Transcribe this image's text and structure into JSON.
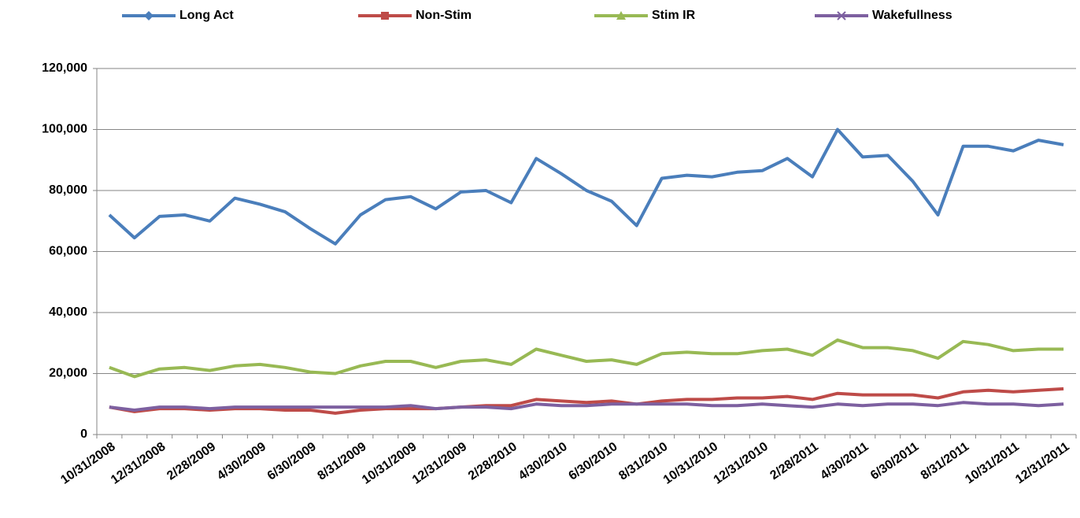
{
  "chart_data": {
    "type": "line",
    "categories": [
      "10/31/2008",
      null,
      "12/31/2008",
      null,
      "2/28/2009",
      null,
      "4/30/2009",
      null,
      "6/30/2009",
      null,
      "8/31/2009",
      null,
      "10/31/2009",
      null,
      "12/31/2009",
      null,
      "2/28/2010",
      null,
      "4/30/2010",
      null,
      "6/30/2010",
      null,
      "8/31/2010",
      null,
      "10/31/2010",
      null,
      "12/31/2010",
      null,
      "2/28/2011",
      null,
      "4/30/2011",
      null,
      "6/30/2011",
      null,
      "8/31/2011",
      null,
      "10/31/2011",
      null,
      "12/31/2011"
    ],
    "series": [
      {
        "name": "Long Act",
        "color": "#4a7ebb",
        "marker": "diamond",
        "values": [
          72000,
          64500,
          71500,
          72000,
          70000,
          77500,
          75500,
          73000,
          67500,
          62500,
          72000,
          77000,
          78000,
          74000,
          79500,
          80000,
          76000,
          90500,
          85500,
          80000,
          76500,
          68500,
          84000,
          85000,
          84500,
          86000,
          86500,
          90500,
          84500,
          100000,
          91000,
          91500,
          83000,
          72000,
          94500,
          94500,
          93000,
          96500,
          95000
        ]
      },
      {
        "name": "Non-Stim",
        "color": "#be4b48",
        "marker": "square",
        "values": [
          9000,
          7500,
          8500,
          8500,
          8000,
          8500,
          8500,
          8000,
          8000,
          7000,
          8000,
          8500,
          8500,
          8500,
          9000,
          9500,
          9500,
          11500,
          11000,
          10500,
          11000,
          10000,
          11000,
          11500,
          11500,
          12000,
          12000,
          12500,
          11500,
          13500,
          13000,
          13000,
          13000,
          12000,
          14000,
          14500,
          14000,
          14500,
          15000
        ]
      },
      {
        "name": "Stim IR",
        "color": "#98b954",
        "marker": "triangle",
        "values": [
          22000,
          19000,
          21500,
          22000,
          21000,
          22500,
          23000,
          22000,
          20500,
          20000,
          22500,
          24000,
          24000,
          22000,
          24000,
          24500,
          23000,
          28000,
          26000,
          24000,
          24500,
          23000,
          26500,
          27000,
          26500,
          26500,
          27500,
          28000,
          26000,
          31000,
          28500,
          28500,
          27500,
          25000,
          30500,
          29500,
          27500,
          28000,
          28000
        ]
      },
      {
        "name": "Wakefullness",
        "color": "#7d60a0",
        "marker": "x",
        "values": [
          9000,
          8000,
          9000,
          9000,
          8500,
          9000,
          9000,
          9000,
          9000,
          9000,
          9000,
          9000,
          9500,
          8500,
          9000,
          9000,
          8500,
          10000,
          9500,
          9500,
          10000,
          10000,
          10000,
          10000,
          9500,
          9500,
          10000,
          9500,
          9000,
          10000,
          9500,
          10000,
          10000,
          9500,
          10500,
          10000,
          10000,
          9500,
          10000
        ]
      }
    ],
    "ylim": [
      0,
      120000
    ],
    "yticks": [
      0,
      {
        "value": 20000,
        "label": "20,000"
      },
      {
        "value": 40000,
        "label": "40,000"
      },
      {
        "value": 60000,
        "label": "60,000"
      },
      {
        "value": 80000,
        "label": "80,000"
      },
      {
        "value": 100000,
        "label": "100,000"
      },
      {
        "value": 120000,
        "label": "120,000"
      }
    ],
    "grid": true,
    "legend": "top"
  }
}
